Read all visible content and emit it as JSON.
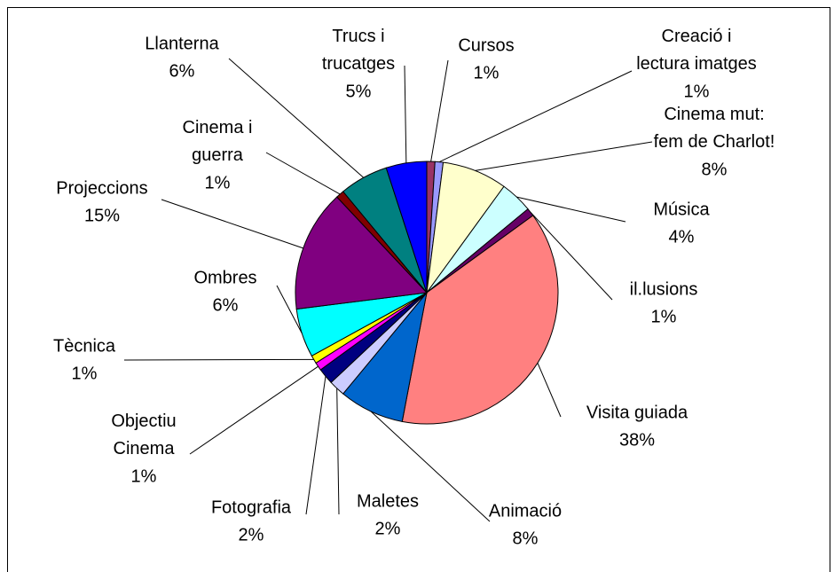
{
  "chart_data": {
    "type": "pie",
    "categories": [
      "Cursos",
      "Creació i\nlectura imatges",
      "Cinema mut:\nfem de Charlot!",
      "Música",
      "il.lusions",
      "Visita guiada",
      "Animació",
      "Maletes",
      "Fotografia",
      "Objectiu\nCinema",
      "Tècnica",
      "Ombres",
      "Projeccions",
      "Cinema i\nguerra",
      "Llanterna",
      "Trucs i\ntrucatges"
    ],
    "values": [
      1,
      1,
      8,
      4,
      1,
      38,
      8,
      2,
      2,
      1,
      1,
      6,
      15,
      1,
      6,
      5
    ],
    "value_labels": [
      "1%",
      "1%",
      "8%",
      "4%",
      "1%",
      "38%",
      "8%",
      "2%",
      "2%",
      "1%",
      "1%",
      "6%",
      "15%",
      "1%",
      "6%",
      "5%"
    ],
    "colors": [
      "#993366",
      "#9999FF",
      "#FFFFCC",
      "#CCFFFF",
      "#660066",
      "#FF8080",
      "#0066CC",
      "#CCCCFF",
      "#000080",
      "#FF00FF",
      "#FFFF00",
      "#00FFFF",
      "#800080",
      "#800000",
      "#008080",
      "#0000FF"
    ]
  }
}
